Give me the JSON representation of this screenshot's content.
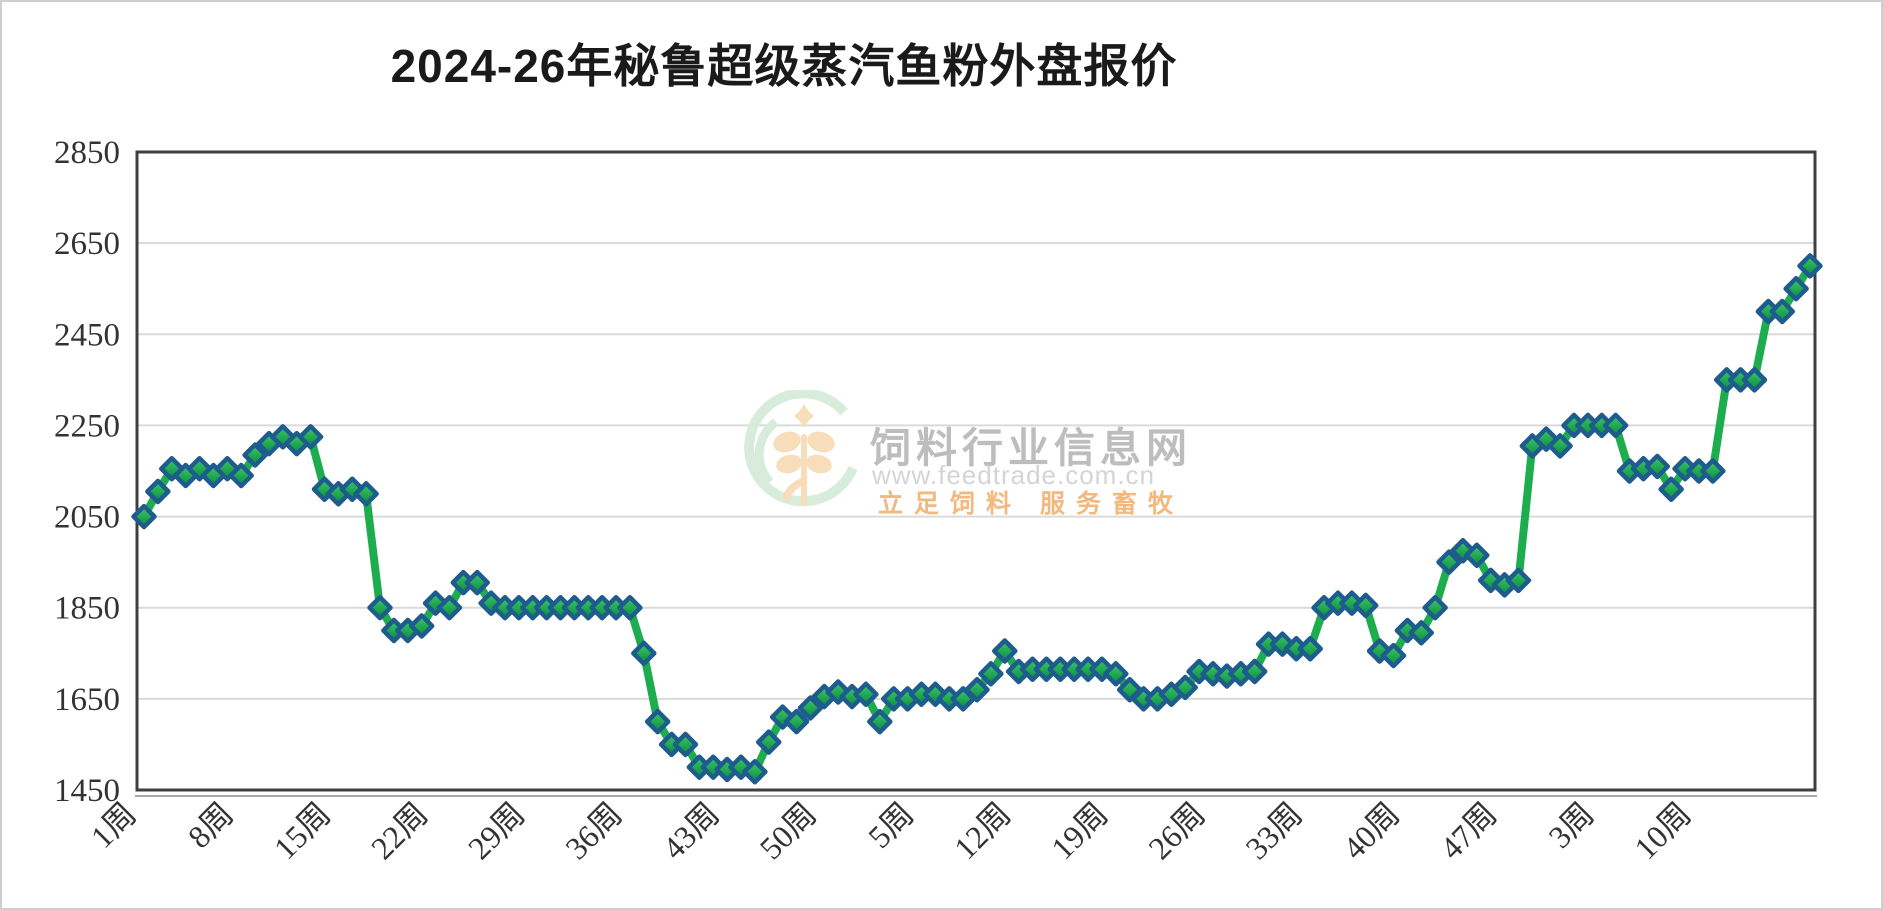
{
  "title": "2024-26年秘鲁超级蒸汽鱼粉外盘报价",
  "watermark": {
    "site_name": "饲料行业信息网",
    "url": "www.feedtrade.com.cn",
    "slogan": "立足饲料  服务畜牧"
  },
  "chart_data": {
    "type": "line",
    "title": "2024-26年秘鲁超级蒸汽鱼粉外盘报价",
    "series_name": "秘鲁超级蒸汽鱼粉外盘报价",
    "xlabel": "",
    "ylabel": "",
    "ylim": [
      1450,
      2850
    ],
    "y_ticks": [
      1450,
      1650,
      1850,
      2050,
      2250,
      2450,
      2650,
      2850
    ],
    "grid": true,
    "legend_position": "none",
    "x_tick_every": 7,
    "x_tick_labels": [
      "1周",
      "8周",
      "15周",
      "22周",
      "29周",
      "36周",
      "43周",
      "50周",
      "5周",
      "12周",
      "19周",
      "26周",
      "33周",
      "40周",
      "47周",
      "3周",
      "10周"
    ],
    "values": [
      2050,
      2105,
      2155,
      2140,
      2155,
      2140,
      2155,
      2140,
      2185,
      2210,
      2225,
      2210,
      2225,
      2110,
      2100,
      2110,
      2100,
      1850,
      1800,
      1800,
      1810,
      1860,
      1850,
      1905,
      1905,
      1860,
      1850,
      1850,
      1850,
      1850,
      1850,
      1850,
      1850,
      1850,
      1850,
      1850,
      1750,
      1600,
      1550,
      1550,
      1500,
      1500,
      1495,
      1500,
      1490,
      1555,
      1610,
      1600,
      1630,
      1655,
      1665,
      1655,
      1660,
      1600,
      1650,
      1650,
      1660,
      1660,
      1650,
      1650,
      1670,
      1705,
      1755,
      1710,
      1715,
      1715,
      1715,
      1715,
      1715,
      1715,
      1705,
      1670,
      1650,
      1650,
      1660,
      1675,
      1710,
      1705,
      1700,
      1705,
      1710,
      1770,
      1770,
      1760,
      1760,
      1850,
      1860,
      1860,
      1855,
      1755,
      1745,
      1800,
      1795,
      1850,
      1950,
      1975,
      1965,
      1910,
      1900,
      1910,
      2205,
      2220,
      2205,
      2250,
      2250,
      2250,
      2250,
      2150,
      2155,
      2160,
      2110,
      2155,
      2150,
      2150,
      2350,
      2350,
      2350,
      2500,
      2500,
      2550,
      2600
    ],
    "colors": {
      "line": "#1ead4e",
      "marker_fill_top": "#3cc968",
      "marker_fill_bottom": "#0a8a3e",
      "marker_border": "#1d5c8d",
      "grid": "#dadada",
      "frame": "#3f3f3f",
      "label": "#333333",
      "watermark_green": "#d8ecdc",
      "watermark_orange": "#f7ddba"
    }
  }
}
